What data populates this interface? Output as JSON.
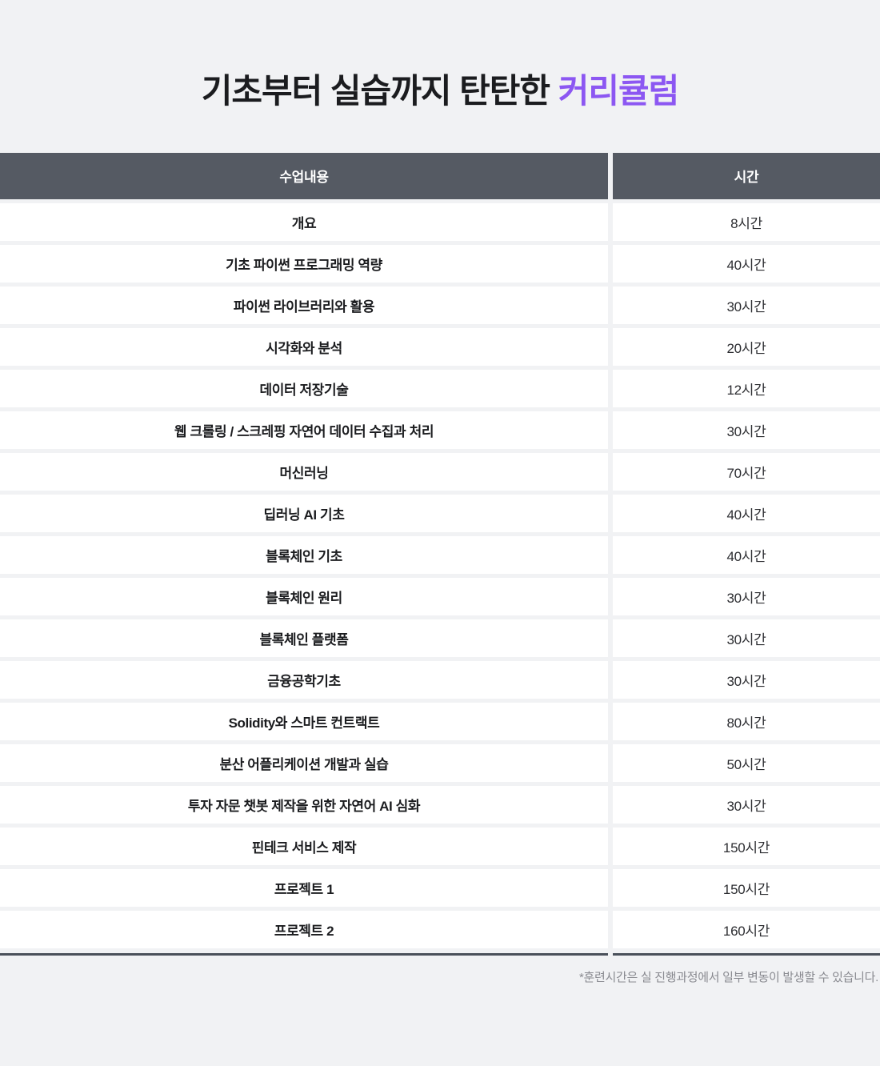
{
  "title": {
    "main": "기초부터 실습까지 탄탄한 ",
    "accent": "커리큘럼"
  },
  "colors": {
    "accent": "#8C57F2",
    "header_bg": "#555A63",
    "bottom_line": "#4A505A",
    "page_bg": "#F1F2F4"
  },
  "table": {
    "columns": [
      "수업내용",
      "시간"
    ],
    "rows": [
      {
        "subject": "개요",
        "hours": "8시간"
      },
      {
        "subject": "기초 파이썬 프로그래밍 역량",
        "hours": "40시간"
      },
      {
        "subject": "파이썬 라이브러리와 활용",
        "hours": "30시간"
      },
      {
        "subject": "시각화와 분석",
        "hours": "20시간"
      },
      {
        "subject": "데이터 저장기술",
        "hours": "12시간"
      },
      {
        "subject": "웹 크롤링 / 스크레핑 자연어 데이터 수집과 처리",
        "hours": "30시간"
      },
      {
        "subject": "머신러닝",
        "hours": "70시간"
      },
      {
        "subject": "딥러닝 AI 기초",
        "hours": "40시간"
      },
      {
        "subject": "블록체인 기초",
        "hours": "40시간"
      },
      {
        "subject": "블록체인 원리",
        "hours": "30시간"
      },
      {
        "subject": "블록체인 플랫폼",
        "hours": "30시간"
      },
      {
        "subject": "금융공학기초",
        "hours": "30시간"
      },
      {
        "subject": "Solidity와 스마트 컨트랙트",
        "hours": "80시간"
      },
      {
        "subject": "분산 어플리케이션 개발과 실습",
        "hours": "50시간"
      },
      {
        "subject": "투자 자문 챗봇 제작을 위한 자연어 AI 심화",
        "hours": "30시간"
      },
      {
        "subject": "핀테크 서비스 제작",
        "hours": "150시간"
      },
      {
        "subject": "프로젝트 1",
        "hours": "150시간"
      },
      {
        "subject": "프로젝트 2",
        "hours": "160시간"
      }
    ]
  },
  "footnote": "*훈련시간은 실 진행과정에서 일부 변동이 발생할 수 있습니다."
}
